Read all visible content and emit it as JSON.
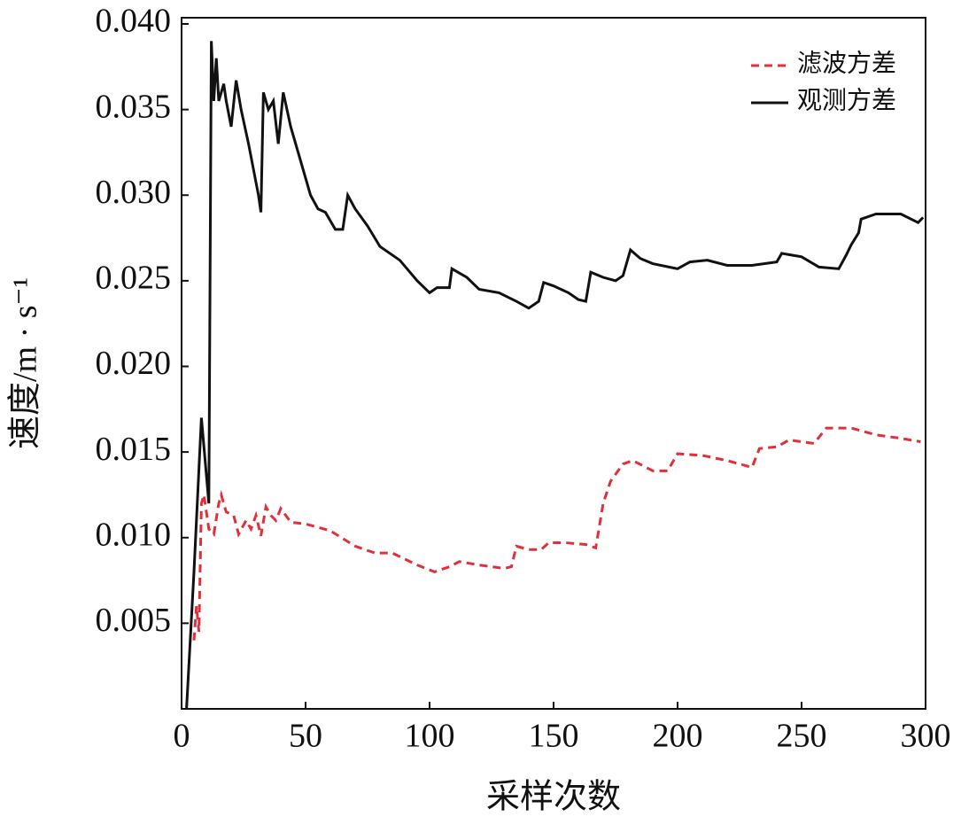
{
  "chart_data": {
    "type": "line",
    "xlabel": "采样次数",
    "ylabel": "速度/m · s⁻¹",
    "xlim": [
      0,
      300
    ],
    "xticks": [
      0,
      50,
      100,
      150,
      200,
      250,
      300
    ],
    "ylim": [
      0,
      0.04
    ],
    "yticks": [
      {
        "value": 0.005,
        "label": "0.005"
      },
      {
        "value": 0.01,
        "label": "0.010"
      },
      {
        "value": 0.015,
        "label": "0.015"
      },
      {
        "value": 0.02,
        "label": "0.020"
      },
      {
        "value": 0.025,
        "label": "0.025"
      },
      {
        "value": 0.03,
        "label": "0.030"
      },
      {
        "value": 0.035,
        "label": "0.035"
      },
      {
        "value": 0.04,
        "label": "0.040"
      }
    ],
    "legend": "upper right",
    "series": [
      {
        "name": "滤波方差",
        "color": "#e0303a",
        "dash": true,
        "x": [
          5,
          6,
          7,
          8,
          9,
          11,
          13,
          15,
          16,
          18,
          21,
          23,
          26,
          28,
          30,
          32,
          34,
          36,
          38,
          40,
          44,
          50,
          60,
          70,
          78,
          85,
          95,
          102,
          108,
          112,
          120,
          130,
          133,
          135,
          140,
          145,
          148,
          155,
          163,
          167,
          170,
          173,
          178,
          182,
          190,
          196,
          200,
          210,
          220,
          230,
          233,
          240,
          245,
          255,
          260,
          270,
          280,
          290,
          298
        ],
        "values": [
          0.004,
          0.006,
          0.0045,
          0.012,
          0.0125,
          0.0105,
          0.0102,
          0.012,
          0.0125,
          0.0115,
          0.0113,
          0.0102,
          0.011,
          0.0105,
          0.0113,
          0.0101,
          0.0118,
          0.0113,
          0.011,
          0.0117,
          0.0109,
          0.0108,
          0.0104,
          0.0095,
          0.0091,
          0.0091,
          0.0084,
          0.008,
          0.0083,
          0.0086,
          0.0084,
          0.0082,
          0.0083,
          0.0095,
          0.0093,
          0.0093,
          0.0097,
          0.0097,
          0.0096,
          0.0094,
          0.012,
          0.0133,
          0.0143,
          0.0145,
          0.0139,
          0.0139,
          0.0149,
          0.0148,
          0.0145,
          0.0141,
          0.0152,
          0.0153,
          0.0157,
          0.0155,
          0.0164,
          0.0164,
          0.016,
          0.0158,
          0.0156
        ]
      },
      {
        "name": "观测方差",
        "color": "#111111",
        "dash": false,
        "x": [
          2,
          5,
          8,
          11,
          12,
          13,
          14,
          15,
          17,
          18,
          20,
          22,
          24,
          27,
          29,
          31,
          32,
          33,
          35,
          37,
          39,
          41,
          44,
          48,
          52,
          55,
          58,
          62,
          65,
          67,
          70,
          75,
          80,
          88,
          95,
          100,
          103,
          108,
          109,
          115,
          120,
          128,
          135,
          140,
          144,
          146,
          150,
          156,
          160,
          163,
          165,
          170,
          175,
          178,
          181,
          185,
          190,
          200,
          205,
          212,
          220,
          230,
          240,
          242,
          250,
          257,
          265,
          268,
          270,
          273,
          274,
          280,
          290,
          297,
          299
        ],
        "values": [
          0.0,
          0.008,
          0.017,
          0.012,
          0.039,
          0.0355,
          0.038,
          0.0355,
          0.0365,
          0.0355,
          0.034,
          0.0367,
          0.035,
          0.033,
          0.0315,
          0.03,
          0.029,
          0.036,
          0.035,
          0.0355,
          0.033,
          0.036,
          0.034,
          0.032,
          0.03,
          0.0292,
          0.029,
          0.028,
          0.028,
          0.03,
          0.0292,
          0.0282,
          0.027,
          0.0262,
          0.025,
          0.0243,
          0.0246,
          0.0246,
          0.0257,
          0.0252,
          0.0245,
          0.0243,
          0.0238,
          0.0234,
          0.0238,
          0.0249,
          0.0247,
          0.0243,
          0.0239,
          0.0238,
          0.0255,
          0.0252,
          0.025,
          0.0253,
          0.0268,
          0.0263,
          0.026,
          0.0257,
          0.0261,
          0.0262,
          0.0259,
          0.0259,
          0.0261,
          0.0266,
          0.0264,
          0.0258,
          0.0257,
          0.0265,
          0.0271,
          0.0278,
          0.0286,
          0.0289,
          0.0289,
          0.0284,
          0.0287
        ]
      }
    ]
  }
}
